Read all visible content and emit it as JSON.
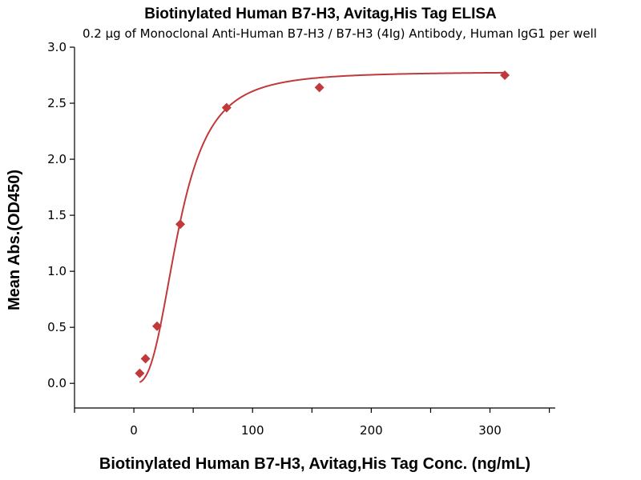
{
  "chart_data": {
    "type": "scatter",
    "title": "Biotinylated Human B7-H3, Avitag,His Tag ELISA",
    "subtitle": "0.2 µg of Monoclonal Anti-Human B7-H3 / B7-H3 (4Ig) Antibody, Human IgG1 per well",
    "xlabel": "Biotinylated Human B7-H3, Avitag,His Tag Conc. (ng/mL)",
    "ylabel": "Mean Abs.(OD450)",
    "xlim": [
      -50,
      355
    ],
    "ylim": [
      -0.22,
      3.0
    ],
    "x_ticks": [
      0,
      100,
      200,
      300
    ],
    "x_tick_labels": [
      "0",
      "100",
      "200",
      "300"
    ],
    "y_ticks": [
      0.0,
      0.5,
      1.0,
      1.5,
      2.0,
      2.5,
      3.0
    ],
    "y_tick_labels": [
      "0.0",
      "0.5",
      "1.0",
      "1.5",
      "2.0",
      "2.5",
      "3.0"
    ],
    "grid": false,
    "series": [
      {
        "color": "#c0393b",
        "marker": "diamond",
        "x": [
          4.9,
          9.8,
          19.5,
          39.1,
          78.1,
          156.3,
          312.5
        ],
        "y": [
          0.09,
          0.22,
          0.51,
          1.42,
          2.46,
          2.64,
          2.75
        ]
      }
    ],
    "fit_curve": {
      "type": "4PL",
      "bottom": 0.0,
      "top": 2.78,
      "ec50": 38,
      "hill": 2.8,
      "color": "#c0393b"
    }
  }
}
